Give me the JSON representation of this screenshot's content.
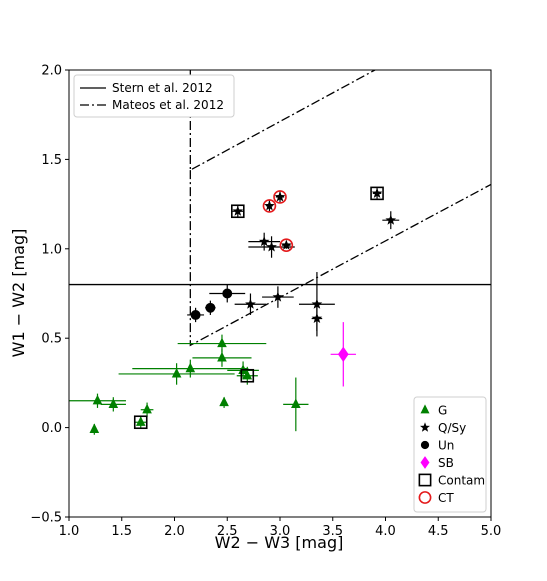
{
  "chart_data": {
    "type": "scatter",
    "xlabel": "W2 − W3 [mag]",
    "ylabel": "W1 − W2 [mag]",
    "xlim": [
      1.0,
      5.0
    ],
    "ylim": [
      -0.5,
      2.0
    ],
    "xticks": [
      "1.0",
      "1.5",
      "2.0",
      "2.5",
      "3.0",
      "3.5",
      "4.0",
      "4.5",
      "5.0"
    ],
    "yticks": [
      "−0.5",
      "0.0",
      "0.5",
      "1.0",
      "1.5",
      "2.0"
    ],
    "grid": false,
    "lines": [
      {
        "name": "Stern et al. 2012",
        "style": "solid",
        "points": [
          [
            1.0,
            0.8
          ],
          [
            5.0,
            0.8
          ]
        ]
      },
      {
        "name": "Mateos et al. 2012",
        "style": "dashdot",
        "points": [
          [
            2.15,
            2.0
          ],
          [
            2.15,
            1.44
          ],
          [
            3.9,
            2.0
          ]
        ],
        "points2": [
          [
            2.15,
            1.44
          ],
          [
            2.15,
            0.46
          ],
          [
            5.0,
            1.36
          ]
        ]
      }
    ],
    "series": [
      {
        "name": "G",
        "marker": "triangle",
        "color": "#008000",
        "points": [
          {
            "x": 1.24,
            "y": -0.01,
            "xe": 0.0,
            "ye": 0.03
          },
          {
            "x": 1.27,
            "y": 0.15,
            "xe": 0.27,
            "ye": 0.04
          },
          {
            "x": 1.42,
            "y": 0.13,
            "xe": 0.12,
            "ye": 0.04
          },
          {
            "x": 1.68,
            "y": 0.03,
            "xe": 0.05,
            "ye": 0.03
          },
          {
            "x": 1.74,
            "y": 0.1,
            "xe": 0.06,
            "ye": 0.04
          },
          {
            "x": 2.02,
            "y": 0.3,
            "xe": 0.55,
            "ye": 0.06
          },
          {
            "x": 2.15,
            "y": 0.33,
            "xe": 0.55,
            "ye": 0.05
          },
          {
            "x": 2.45,
            "y": 0.47,
            "xe": 0.42,
            "ye": 0.05
          },
          {
            "x": 2.45,
            "y": 0.39,
            "xe": 0.28,
            "ye": 0.05
          },
          {
            "x": 2.47,
            "y": 0.14,
            "xe": 0.0,
            "ye": 0.03
          },
          {
            "x": 2.65,
            "y": 0.32,
            "xe": 0.15,
            "ye": 0.05
          },
          {
            "x": 2.69,
            "y": 0.29,
            "xe": 0.1,
            "ye": 0.05
          },
          {
            "x": 3.15,
            "y": 0.13,
            "xe": 0.12,
            "ye": 0.15
          }
        ]
      },
      {
        "name": "Q/Sy",
        "marker": "star",
        "color": "#000000",
        "points": [
          {
            "x": 2.6,
            "y": 1.21,
            "xe": 0.05,
            "ye": 0.03
          },
          {
            "x": 2.85,
            "y": 1.04,
            "xe": 0.15,
            "ye": 0.05
          },
          {
            "x": 2.9,
            "y": 1.24,
            "xe": 0.03,
            "ye": 0.03
          },
          {
            "x": 2.92,
            "y": 1.01,
            "xe": 0.22,
            "ye": 0.06
          },
          {
            "x": 3.0,
            "y": 1.29,
            "xe": 0.04,
            "ye": 0.03
          },
          {
            "x": 3.06,
            "y": 1.02,
            "xe": 0.04,
            "ye": 0.02
          },
          {
            "x": 2.72,
            "y": 0.69,
            "xe": 0.15,
            "ye": 0.06
          },
          {
            "x": 2.98,
            "y": 0.73,
            "xe": 0.15,
            "ye": 0.06
          },
          {
            "x": 3.35,
            "y": 0.69,
            "xe": 0.17,
            "ye": 0.18
          },
          {
            "x": 3.35,
            "y": 0.61,
            "xe": 0.05,
            "ye": 0.07
          },
          {
            "x": 3.92,
            "y": 1.31,
            "xe": 0.04,
            "ye": 0.03
          },
          {
            "x": 4.05,
            "y": 1.16,
            "xe": 0.08,
            "ye": 0.05
          }
        ]
      },
      {
        "name": "Un",
        "marker": "circle",
        "color": "#000000",
        "points": [
          {
            "x": 2.2,
            "y": 0.63,
            "xe": 0.08,
            "ye": 0.04
          },
          {
            "x": 2.34,
            "y": 0.67,
            "xe": 0.05,
            "ye": 0.04
          },
          {
            "x": 2.5,
            "y": 0.75,
            "xe": 0.17,
            "ye": 0.05
          }
        ]
      },
      {
        "name": "SB",
        "marker": "diamond",
        "color": "#ff00ff",
        "points": [
          {
            "x": 3.6,
            "y": 0.41,
            "xe": 0.12,
            "ye": 0.18
          }
        ]
      }
    ],
    "overlays": [
      {
        "name": "Contam",
        "marker": "open-square",
        "color": "#000000",
        "points": [
          {
            "x": 1.68,
            "y": 0.03
          },
          {
            "x": 2.69,
            "y": 0.29
          },
          {
            "x": 2.6,
            "y": 1.21
          },
          {
            "x": 3.92,
            "y": 1.31
          }
        ]
      },
      {
        "name": "CT",
        "marker": "open-circle",
        "color": "#e41a1c",
        "points": [
          {
            "x": 2.9,
            "y": 1.24
          },
          {
            "x": 3.0,
            "y": 1.29
          },
          {
            "x": 3.06,
            "y": 1.02
          }
        ]
      }
    ],
    "legends": {
      "lines": [
        "Stern et al. 2012",
        "Mateos et al. 2012"
      ],
      "markers": [
        "G",
        "Q/Sy",
        "Un",
        "SB",
        "Contam",
        "CT"
      ]
    }
  }
}
